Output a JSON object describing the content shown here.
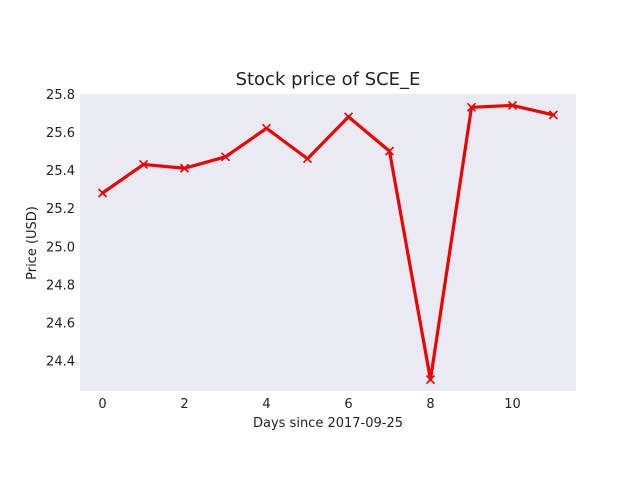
{
  "chart_data": {
    "type": "line",
    "title": "Stock price of SCE_E",
    "xlabel": "Days since 2017-09-25",
    "ylabel": "Price (USD)",
    "x": [
      0,
      1,
      2,
      3,
      4,
      5,
      6,
      7,
      8,
      9,
      10,
      11
    ],
    "series": [
      {
        "values": [
          25.28,
          25.43,
          25.41,
          25.47,
          25.62,
          25.46,
          25.68,
          25.5,
          24.3,
          25.73,
          25.74,
          25.69
        ],
        "color": "#ee0000",
        "marker": "x"
      }
    ],
    "xlim": [
      -0.55,
      11.55
    ],
    "ylim": [
      24.24,
      25.8
    ],
    "xticks": [
      0,
      2,
      4,
      6,
      8,
      10
    ],
    "yticks": [
      24.4,
      24.6,
      24.8,
      25.0,
      25.2,
      25.4,
      25.6,
      25.8
    ],
    "ytick_labels": [
      "24.4",
      "24.6",
      "24.8",
      "25.0",
      "25.2",
      "25.4",
      "25.6",
      "25.8"
    ],
    "grid": false,
    "background": "#eaeaf2"
  }
}
